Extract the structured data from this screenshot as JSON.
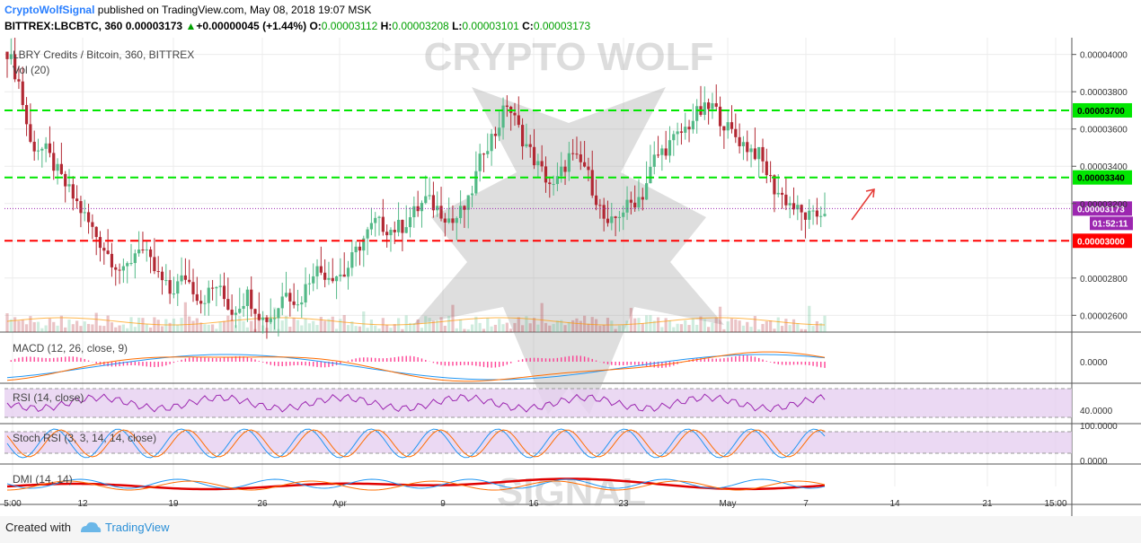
{
  "header": {
    "brand": "CryptoWolfSignal",
    "published": "published on TradingView.com, May 08, 2018 19:07 MSK",
    "symbol": "BITTREX:LBCBTC, 360",
    "last": "0.00003173",
    "change_arrow": "▲",
    "change": "+0.00000045 (+1.44%)",
    "o_label": "O:",
    "o": "0.00003112",
    "h_label": "H:",
    "h": "0.00003208",
    "l_label": "L:",
    "l": "0.00003101",
    "c_label": "C:",
    "c": "0.00003173"
  },
  "footer": {
    "created": "Created with",
    "tradingview": "TradingView"
  },
  "watermark": {
    "top": "CRYPTO WOLF",
    "bottom": "SIGNAL"
  },
  "colors": {
    "up": "#53b987",
    "down": "#b22833",
    "green_line": "#00e600",
    "red_line": "#ff0000",
    "price_line": "#9c27b0"
  },
  "chart_data": {
    "type": "candlestick",
    "title": "LBRY Credits / Bitcoin, 360, BITTREX",
    "volume_label": "Vol (20)",
    "ylim": [
      2.51e-05,
      4.09e-05
    ],
    "y_ticks": [
      "0.00004000",
      "0.00003800",
      "0.00003600",
      "0.00003400",
      "0.00003200",
      "0.00002800",
      "0.00002600"
    ],
    "horizontal_levels": [
      {
        "price": 3.7e-05,
        "label": "0.00003700",
        "color": "#00e600"
      },
      {
        "price": 3.34e-05,
        "label": "0.00003340",
        "color": "#00e600"
      },
      {
        "price": 3.173e-05,
        "label": "0.00003173",
        "color": "#9c27b0"
      },
      {
        "price": 3e-05,
        "label": "0.00003000",
        "color": "#ff0000"
      }
    ],
    "countdown": "01:52:11",
    "x_labels": [
      "5:00",
      "12",
      "19",
      "26",
      "Apr",
      "9",
      "16",
      "23",
      "May",
      "7",
      "14",
      "21",
      "15:00"
    ],
    "panes": [
      {
        "name": "MACD (12, 26, close, 9)",
        "tick": "0.0000"
      },
      {
        "name": "RSI (14, close)",
        "tick": "40.0000"
      },
      {
        "name": "Stoch RSI (3, 3, 14, 14, close)",
        "ticks": [
          "100.0000",
          "0.0000"
        ]
      },
      {
        "name": "DMI (14, 14)"
      }
    ],
    "close_path": [
      [
        0,
        4.02e-05
      ],
      [
        3,
        3.85e-05
      ],
      [
        6,
        3.52e-05
      ],
      [
        10,
        3.48e-05
      ],
      [
        14,
        3.33e-05
      ],
      [
        18,
        3.2e-05
      ],
      [
        22,
        3.06e-05
      ],
      [
        26,
        2.93e-05
      ],
      [
        30,
        2.82e-05
      ],
      [
        34,
        2.98e-05
      ],
      [
        38,
        2.84e-05
      ],
      [
        42,
        2.72e-05
      ],
      [
        46,
        2.81e-05
      ],
      [
        50,
        2.68e-05
      ],
      [
        54,
        2.76e-05
      ],
      [
        58,
        2.62e-05
      ],
      [
        62,
        2.71e-05
      ],
      [
        66,
        2.58e-05
      ],
      [
        69,
        2.6e-05
      ],
      [
        72,
        2.75e-05
      ],
      [
        75,
        2.65e-05
      ],
      [
        79,
        2.85e-05
      ],
      [
        83,
        2.82e-05
      ],
      [
        87,
        2.82e-05
      ],
      [
        91,
        2.98e-05
      ],
      [
        95,
        3.1e-05
      ],
      [
        99,
        3.06e-05
      ],
      [
        102,
        3.08e-05
      ],
      [
        105,
        3.15e-05
      ],
      [
        108,
        3.22e-05
      ],
      [
        112,
        3.16e-05
      ],
      [
        115,
        3.1e-05
      ],
      [
        119,
        3.2e-05
      ],
      [
        123,
        3.5e-05
      ],
      [
        126,
        3.58e-05
      ],
      [
        129,
        3.74e-05
      ],
      [
        133,
        3.55e-05
      ],
      [
        137,
        3.4e-05
      ],
      [
        141,
        3.28e-05
      ],
      [
        145,
        3.45e-05
      ],
      [
        149,
        3.4e-05
      ],
      [
        152,
        3.23e-05
      ],
      [
        155,
        3.06e-05
      ],
      [
        158,
        3.15e-05
      ],
      [
        161,
        3.2e-05
      ],
      [
        164,
        3.25e-05
      ],
      [
        167,
        3.44e-05
      ],
      [
        171,
        3.52e-05
      ],
      [
        175,
        3.6e-05
      ],
      [
        178,
        3.68e-05
      ],
      [
        182,
        3.72e-05
      ],
      [
        186,
        3.6e-05
      ],
      [
        190,
        3.52e-05
      ],
      [
        194,
        3.46e-05
      ],
      [
        198,
        3.28e-05
      ],
      [
        202,
        3.2e-05
      ],
      [
        205,
        3.14e-05
      ],
      [
        208,
        3.12e-05
      ],
      [
        211,
        3.17e-05
      ]
    ]
  }
}
